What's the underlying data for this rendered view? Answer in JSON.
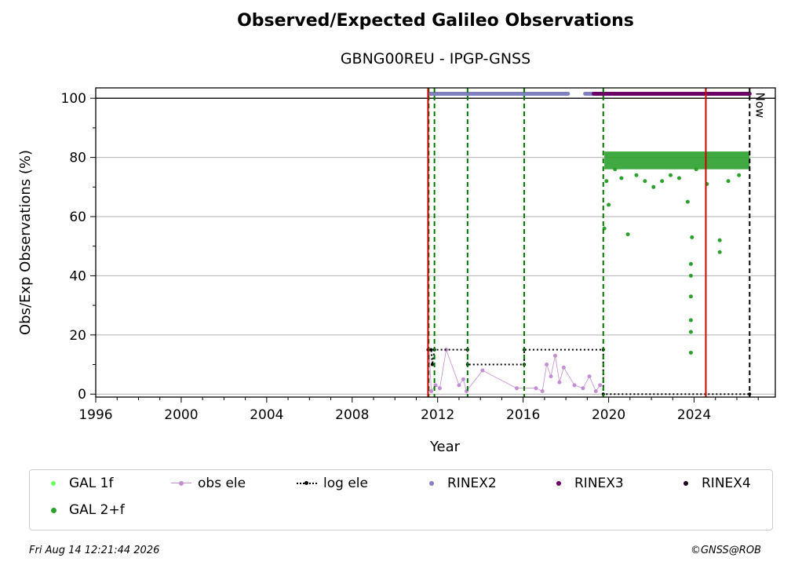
{
  "title": "Observed/Expected Galileo Observations",
  "subtitle": "GBNG00REU - IPGP-GNSS",
  "footer": {
    "timestamp": "Fri Aug 14 12:21:44 2026",
    "credit": "©GNSS@ROB"
  },
  "now_label": "Now",
  "chart_data": {
    "type": "scatter",
    "xlabel": "Year",
    "ylabel": "Obs/Exp Observations (%)",
    "xlim": [
      1996,
      2027.8
    ],
    "ylim": [
      -1,
      103.5
    ],
    "xticks": [
      "1996",
      "2000",
      "2004",
      "2008",
      "2012",
      "2016",
      "2020",
      "2024"
    ],
    "yticks": [
      "0",
      "20",
      "40",
      "60",
      "80",
      "100"
    ],
    "grid": "y",
    "legend_placement": "bottom",
    "legend": [
      "GAL 1f",
      "obs ele",
      "log ele",
      "RINEX2",
      "RINEX3",
      "RINEX4",
      "GAL 2+f"
    ],
    "colors": {
      "gal_1f": "#66ff66",
      "gal_2f": "#2ca02c",
      "obs_ele": "#c28fd1",
      "log_ele": "#000000",
      "rinex2": "#8080c0",
      "rinex3": "#6b0066",
      "rinex4": "#220022",
      "event_red": "#cc0000",
      "event_green": "#007700"
    },
    "events_red": [
      2011.55,
      2024.55
    ],
    "events_green": [
      2011.58,
      2011.85,
      2013.4,
      2016.05,
      2019.75
    ],
    "now": 2026.6,
    "rinex2_spans": [
      [
        2011.6,
        2018.1
      ],
      [
        2018.9,
        2019.3
      ]
    ],
    "rinex3_spans": [
      [
        2019.3,
        2026.6
      ]
    ],
    "rinex_level": 101.5,
    "log_ele": [
      [
        2011.55,
        15
      ],
      [
        2011.7,
        15
      ],
      [
        2011.75,
        10
      ],
      [
        2011.85,
        15
      ],
      [
        2013.4,
        15
      ],
      [
        2013.4,
        10
      ],
      [
        2016.05,
        10
      ],
      [
        2016.05,
        15
      ],
      [
        2019.75,
        15
      ],
      [
        2019.75,
        0
      ],
      [
        2026.6,
        0
      ]
    ],
    "obs_ele_points": [
      [
        2011.6,
        15
      ],
      [
        2011.7,
        1
      ],
      [
        2011.9,
        3
      ],
      [
        2012.1,
        2
      ],
      [
        2012.4,
        15
      ],
      [
        2013.0,
        3
      ],
      [
        2013.2,
        5
      ],
      [
        2013.35,
        1
      ],
      [
        2014.1,
        8
      ],
      [
        2015.7,
        2
      ],
      [
        2016.6,
        2
      ],
      [
        2016.9,
        1
      ],
      [
        2017.1,
        10
      ],
      [
        2017.3,
        6
      ],
      [
        2017.5,
        13
      ],
      [
        2017.7,
        4
      ],
      [
        2017.9,
        9
      ],
      [
        2018.4,
        3
      ],
      [
        2018.8,
        2
      ],
      [
        2019.1,
        6
      ],
      [
        2019.4,
        1
      ],
      [
        2019.6,
        3
      ]
    ],
    "gal2f_points": [
      [
        2019.8,
        56
      ],
      [
        2019.9,
        72
      ],
      [
        2020.0,
        64
      ],
      [
        2020.3,
        76
      ],
      [
        2020.6,
        73
      ],
      [
        2020.9,
        54
      ],
      [
        2021.3,
        74
      ],
      [
        2021.7,
        72
      ],
      [
        2022.1,
        70
      ],
      [
        2022.5,
        72
      ],
      [
        2022.9,
        74
      ],
      [
        2023.3,
        73
      ],
      [
        2023.7,
        65
      ],
      [
        2023.9,
        53
      ],
      [
        2023.85,
        44
      ],
      [
        2023.85,
        40
      ],
      [
        2023.85,
        33
      ],
      [
        2023.85,
        25
      ],
      [
        2023.85,
        21
      ],
      [
        2023.85,
        14
      ],
      [
        2024.1,
        76
      ],
      [
        2024.6,
        71
      ],
      [
        2025.2,
        52
      ],
      [
        2025.2,
        48
      ],
      [
        2025.6,
        72
      ],
      [
        2026.1,
        74
      ]
    ],
    "gal2f_band": {
      "x": [
        2019.8,
        2026.6
      ],
      "y": [
        76,
        82
      ]
    }
  }
}
